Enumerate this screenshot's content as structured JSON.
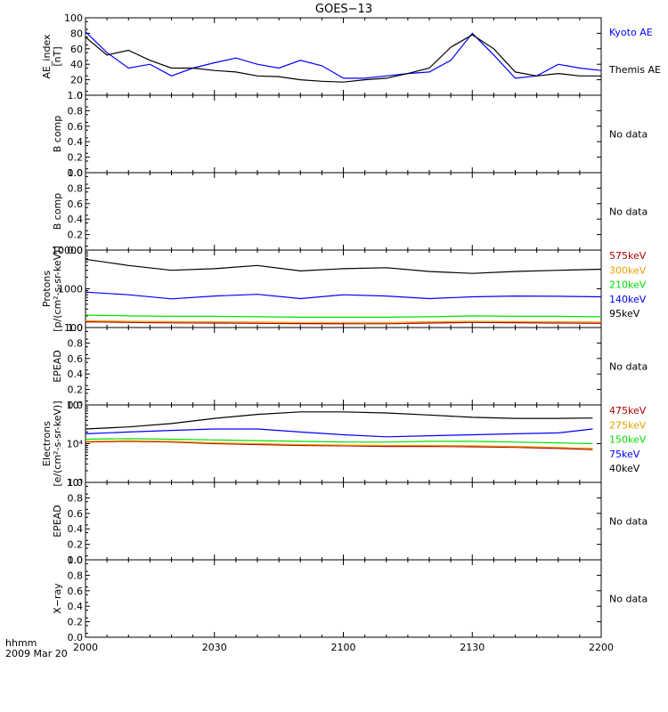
{
  "title": "GOES−13",
  "no_data_text": "No data",
  "time_axis": {
    "unit_label": "hhmm",
    "date_label": "2009 Mar 20",
    "tick_labels": [
      "2000",
      "2030",
      "2100",
      "2130",
      "2200"
    ]
  },
  "colors": {
    "black": "#000000",
    "blue": "#0000ff",
    "green": "#00e000",
    "orange": "#e8a000",
    "red": "#b00000",
    "axis": "#000000"
  },
  "chart_data": [
    {
      "type": "line",
      "ylabel": "AE_index [nT]",
      "ylim": [
        0,
        100
      ],
      "yticks": [
        "0",
        "20",
        "40",
        "60",
        "80",
        "100"
      ],
      "x": [
        "20:00",
        "20:05",
        "20:10",
        "20:15",
        "20:20",
        "20:25",
        "20:30",
        "20:35",
        "20:40",
        "20:45",
        "20:50",
        "20:55",
        "21:00",
        "21:05",
        "21:10",
        "21:15",
        "21:20",
        "21:25",
        "21:30",
        "21:35",
        "21:40",
        "21:45",
        "21:50",
        "21:55",
        "22:00"
      ],
      "series": [
        {
          "name": "Kyoto AE",
          "color": "blue",
          "values": [
            82,
            55,
            35,
            40,
            25,
            35,
            42,
            48,
            40,
            35,
            45,
            38,
            22,
            22,
            25,
            28,
            30,
            45,
            80,
            52,
            22,
            25,
            40,
            35,
            32
          ]
        },
        {
          "name": "Themis AE",
          "color": "black",
          "values": [
            75,
            52,
            58,
            45,
            35,
            35,
            32,
            30,
            25,
            24,
            20,
            18,
            17,
            20,
            22,
            28,
            35,
            62,
            78,
            60,
            30,
            25,
            28,
            25,
            25
          ]
        }
      ]
    },
    {
      "type": "line",
      "ylabel": "B comp",
      "ylim": [
        0,
        1.0
      ],
      "yticks": [
        "0.0",
        "0.2",
        "0.4",
        "0.6",
        "0.8",
        "1.0"
      ],
      "series": [],
      "status": "No data"
    },
    {
      "type": "line",
      "ylabel": "B comp",
      "ylim": [
        0,
        1.0
      ],
      "yticks": [
        "0.0",
        "0.2",
        "0.4",
        "0.6",
        "0.8",
        "1.0"
      ],
      "series": [],
      "status": "No data"
    },
    {
      "type": "line",
      "ylabel": "Protons [p/(cm²-s-sr-keV)]",
      "yscale": "log",
      "ylim": [
        100,
        10000
      ],
      "yticks": [
        "100",
        "1000",
        "10000"
      ],
      "x": [
        "20:00",
        "20:10",
        "20:20",
        "20:30",
        "20:40",
        "20:50",
        "21:00",
        "21:10",
        "21:20",
        "21:30",
        "21:40",
        "21:50",
        "22:00"
      ],
      "series": [
        {
          "name": "575keV",
          "color": "red",
          "values": [
            140,
            135,
            132,
            130,
            128,
            126,
            125,
            125,
            130,
            135,
            133,
            130,
            128
          ]
        },
        {
          "name": "300keV",
          "color": "orange",
          "values": [
            150,
            145,
            142,
            140,
            138,
            135,
            135,
            135,
            140,
            145,
            142,
            140,
            138
          ]
        },
        {
          "name": "210keV",
          "color": "green",
          "values": [
            210,
            200,
            195,
            195,
            190,
            185,
            185,
            185,
            190,
            200,
            195,
            195,
            190
          ]
        },
        {
          "name": "140keV",
          "color": "blue",
          "values": [
            820,
            700,
            550,
            650,
            720,
            560,
            700,
            650,
            560,
            620,
            650,
            640,
            620
          ]
        },
        {
          "name": "95keV",
          "color": "black",
          "values": [
            5800,
            4000,
            3000,
            3300,
            4000,
            2900,
            3300,
            3500,
            2800,
            2500,
            2800,
            3000,
            3200
          ]
        }
      ]
    },
    {
      "type": "line",
      "ylabel": "EPEAD",
      "ylim": [
        0,
        1.0
      ],
      "yticks": [
        "0.0",
        "0.2",
        "0.4",
        "0.6",
        "0.8",
        "1.0"
      ],
      "series": [],
      "status": "No data"
    },
    {
      "type": "line",
      "ylabel": "Electrons [e/(cm²-s-sr-keV)]",
      "yscale": "log",
      "ylim": [
        1000,
        100000
      ],
      "yticks": [
        "10³",
        "10⁴",
        "10⁵"
      ],
      "x": [
        "20:00",
        "20:10",
        "20:20",
        "20:30",
        "20:40",
        "20:50",
        "21:00",
        "21:10",
        "21:20",
        "21:30",
        "21:40",
        "21:50",
        "21:58"
      ],
      "series": [
        {
          "name": "475keV",
          "color": "red",
          "values": [
            11000,
            11500,
            11000,
            10000,
            9500,
            9000,
            8800,
            8500,
            8500,
            8300,
            8000,
            7500,
            7000
          ]
        },
        {
          "name": "275keV",
          "color": "orange",
          "values": [
            11500,
            12000,
            11500,
            10500,
            10000,
            9500,
            9200,
            9000,
            9000,
            8800,
            8500,
            8000,
            7500
          ]
        },
        {
          "name": "150keV",
          "color": "green",
          "values": [
            13000,
            13500,
            13000,
            12500,
            12000,
            11500,
            11000,
            11000,
            11500,
            11500,
            11000,
            10500,
            10000
          ]
        },
        {
          "name": "75keV",
          "color": "blue",
          "values": [
            18000,
            20000,
            22000,
            24000,
            24000,
            20000,
            17000,
            15000,
            16000,
            17000,
            18000,
            19000,
            24000
          ]
        },
        {
          "name": "40keV",
          "color": "black",
          "values": [
            24000,
            27000,
            33000,
            45000,
            57000,
            66000,
            66000,
            62000,
            55000,
            48000,
            45000,
            45000,
            46000
          ]
        }
      ]
    },
    {
      "type": "line",
      "ylabel": "EPEAD",
      "ylim": [
        0,
        1.0
      ],
      "yticks": [
        "0.0",
        "0.2",
        "0.4",
        "0.6",
        "0.8",
        "1.0"
      ],
      "series": [],
      "status": "No data"
    },
    {
      "type": "line",
      "ylabel": "X−ray",
      "ylim": [
        0,
        1.0
      ],
      "yticks": [
        "0.0",
        "0.2",
        "0.4",
        "0.6",
        "0.8",
        "1.0"
      ],
      "series": [],
      "status": "No data"
    }
  ]
}
